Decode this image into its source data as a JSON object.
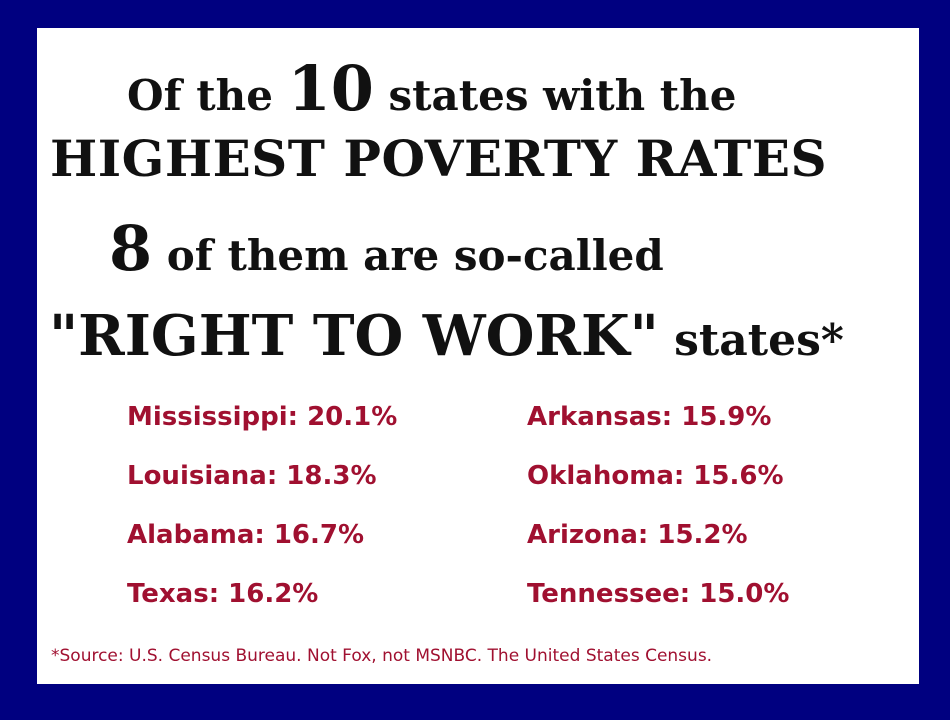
{
  "headline": {
    "line1_pre": "Of the ",
    "line1_num": "10",
    "line1_post": " states with the",
    "line2": "HIGHEST POVERTY RATES",
    "line3_num": "8",
    "line3_post": " of them are so-called",
    "line4_main": "\"RIGHT TO WORK\"",
    "line4_post": " states*"
  },
  "stats": {
    "left": [
      "Mississippi: 20.1%",
      "Louisiana: 18.3%",
      "Alabama: 16.7%",
      "Texas: 16.2%"
    ],
    "right": [
      "Arkansas: 15.9%",
      "Oklahoma: 15.6%",
      "Arizona: 15.2%",
      "Tennessee: 15.0%"
    ]
  },
  "footnote": "*Source: U.S. Census Bureau. Not Fox, not MSNBC. The United States Census.",
  "colors": {
    "background": "#000080",
    "card": "#ffffff",
    "headline_text": "#111111",
    "stat_text": "#a01030"
  }
}
